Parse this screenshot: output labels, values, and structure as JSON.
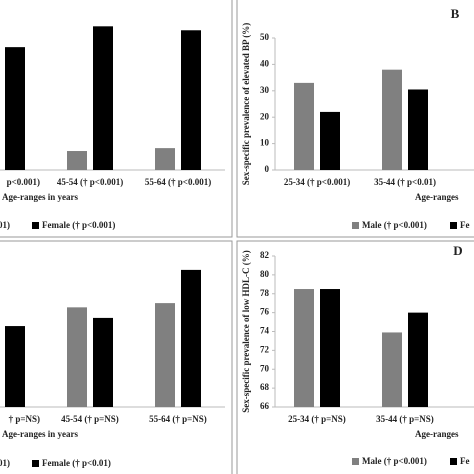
{
  "chart_data": [
    {
      "type": "bar",
      "categories": [
        "p<0.001)",
        "45-54 († p<0.001)",
        "55-64 († p<0.001)"
      ],
      "series": [
        {
          "name": "01)",
          "color": "#808080",
          "values": [
            null,
            7.2,
            8.3
          ]
        },
        {
          "name": "Female († p<0.001)",
          "color": "#000000",
          "values": [
            46.6,
            54.5,
            53
          ]
        }
      ],
      "xlabel": "Age-ranges in years",
      "ylim": [
        0,
        55
      ]
    },
    {
      "type": "bar",
      "label": "B",
      "ylabel": "Sex-specific prevalence of elevated BP (%)",
      "categories": [
        "25-34 († p<0.001)",
        "35-44 († p<0.01)"
      ],
      "series": [
        {
          "name": "Male († p<0.001)",
          "color": "#808080",
          "values": [
            33,
            38
          ]
        },
        {
          "name": "Fe",
          "color": "#000000",
          "values": [
            22,
            30.5
          ]
        }
      ],
      "xlabel": "Age-ranges",
      "ylim": [
        0,
        50
      ],
      "yticks": [
        0,
        10,
        20,
        30,
        40,
        50
      ]
    },
    {
      "type": "bar",
      "categories": [
        "† p=NS)",
        "45-54 († p=NS)",
        "55-64 († p=NS)"
      ],
      "series": [
        {
          "name": "01)",
          "color": "#808080",
          "values": [
            null,
            33,
            34.4
          ]
        },
        {
          "name": "Female († p<0.01)",
          "color": "#000000",
          "values": [
            26.8,
            29.5,
            45.4
          ]
        }
      ],
      "xlabel": "Age-ranges in years",
      "ylim": [
        0,
        50
      ]
    },
    {
      "type": "bar",
      "label": "D",
      "ylabel": "Sex-specific prevalence of low HDL-C (%)",
      "categories": [
        "25-34 († p=NS)",
        "35-44 († p=NS)"
      ],
      "series": [
        {
          "name": "Male († p<0.001)",
          "color": "#808080",
          "values": [
            78.5,
            73.9
          ]
        },
        {
          "name": "Fe",
          "color": "#000000",
          "values": [
            78.5,
            76
          ]
        }
      ],
      "xlabel": "Age-ranges",
      "ylim": [
        66,
        82
      ],
      "yticks": [
        66,
        68,
        70,
        72,
        74,
        76,
        78,
        80,
        82
      ]
    }
  ]
}
